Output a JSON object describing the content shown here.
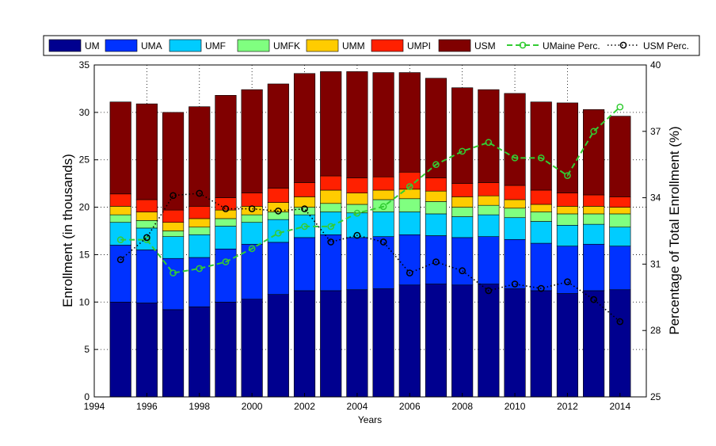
{
  "chart_data": {
    "type": "bar",
    "stacked": true,
    "title": "",
    "xlabel": "Years",
    "ylabel": "Enrollment (in thousands)",
    "y2label": "Percentage of Total Enrollment (%)",
    "xlim": [
      1994,
      2015
    ],
    "ylim": [
      0,
      35
    ],
    "y2lim": [
      25,
      40
    ],
    "xticks": [
      "1994",
      "1996",
      "1998",
      "2000",
      "2002",
      "2004",
      "2006",
      "2008",
      "2010",
      "2012",
      "2014"
    ],
    "yticks": [
      "0",
      "5",
      "10",
      "15",
      "20",
      "25",
      "30",
      "35"
    ],
    "y2ticks": [
      "25",
      "28",
      "31",
      "34",
      "37",
      "40"
    ],
    "grid": "dotted",
    "legend_position": "top",
    "x": [
      1995,
      1996,
      1997,
      1998,
      1999,
      2000,
      2001,
      2002,
      2003,
      2004,
      2005,
      2006,
      2007,
      2008,
      2009,
      2010,
      2011,
      2012,
      2013,
      2014
    ],
    "series": [
      {
        "name": "UM",
        "color": "#00008f",
        "values": [
          10.0,
          9.9,
          9.2,
          9.5,
          10.0,
          10.3,
          10.8,
          11.2,
          11.2,
          11.3,
          11.4,
          11.8,
          11.9,
          11.8,
          11.9,
          11.4,
          11.2,
          10.9,
          11.2,
          11.3
        ]
      },
      {
        "name": "UMA",
        "color": "#0032ff",
        "values": [
          6.0,
          5.6,
          5.4,
          5.2,
          5.6,
          5.8,
          5.5,
          5.6,
          5.9,
          5.5,
          5.5,
          5.3,
          5.1,
          5.0,
          5.0,
          5.2,
          5.0,
          5.0,
          4.9,
          4.6
        ]
      },
      {
        "name": "UMF",
        "color": "#00ccff",
        "values": [
          2.4,
          2.3,
          2.3,
          2.4,
          2.4,
          2.3,
          2.4,
          2.4,
          2.4,
          2.6,
          2.6,
          2.4,
          2.3,
          2.2,
          2.3,
          2.3,
          2.3,
          2.2,
          2.1,
          2.0
        ]
      },
      {
        "name": "UMFK",
        "color": "#80ff80",
        "values": [
          0.8,
          0.8,
          0.6,
          0.8,
          0.8,
          0.8,
          0.8,
          0.8,
          0.9,
          0.9,
          1.3,
          1.4,
          1.3,
          1.0,
          1.0,
          1.0,
          1.0,
          1.2,
          1.1,
          1.4
        ]
      },
      {
        "name": "UMM",
        "color": "#ffcc00",
        "values": [
          0.9,
          0.9,
          0.9,
          0.9,
          0.9,
          0.9,
          1.0,
          1.1,
          1.4,
          1.2,
          1.0,
          1.0,
          1.1,
          1.1,
          1.0,
          0.9,
          0.8,
          0.8,
          0.8,
          0.7
        ]
      },
      {
        "name": "UMPI",
        "color": "#ff2000",
        "values": [
          1.3,
          1.3,
          1.3,
          1.3,
          1.3,
          1.4,
          1.5,
          1.5,
          1.5,
          1.6,
          1.4,
          1.8,
          1.4,
          1.4,
          1.4,
          1.5,
          1.5,
          1.4,
          1.2,
          1.1
        ]
      },
      {
        "name": "USM",
        "color": "#800000",
        "values": [
          9.7,
          10.1,
          10.3,
          10.5,
          10.8,
          10.9,
          11.0,
          11.5,
          11.0,
          11.2,
          11.0,
          10.5,
          10.5,
          10.1,
          9.8,
          9.7,
          9.3,
          9.5,
          9.0,
          8.5
        ]
      }
    ],
    "lines": [
      {
        "name": "UMaine Perc.",
        "color": "#33cc33",
        "axis": "right",
        "style": "dashed",
        "marker": "circle",
        "values": [
          32.1,
          32.1,
          30.6,
          30.8,
          31.1,
          31.7,
          32.4,
          32.7,
          32.7,
          33.3,
          33.6,
          34.5,
          35.5,
          36.1,
          36.5,
          35.8,
          35.8,
          35.0,
          37.0,
          38.1
        ]
      },
      {
        "name": "USM Perc.",
        "color": "#000000",
        "axis": "right",
        "style": "dotted",
        "marker": "circle",
        "values": [
          31.2,
          32.2,
          34.1,
          34.2,
          33.5,
          33.5,
          33.4,
          33.5,
          32.0,
          32.3,
          32.0,
          30.6,
          31.1,
          30.7,
          29.8,
          30.1,
          29.9,
          30.2,
          29.4,
          28.4
        ]
      }
    ]
  }
}
